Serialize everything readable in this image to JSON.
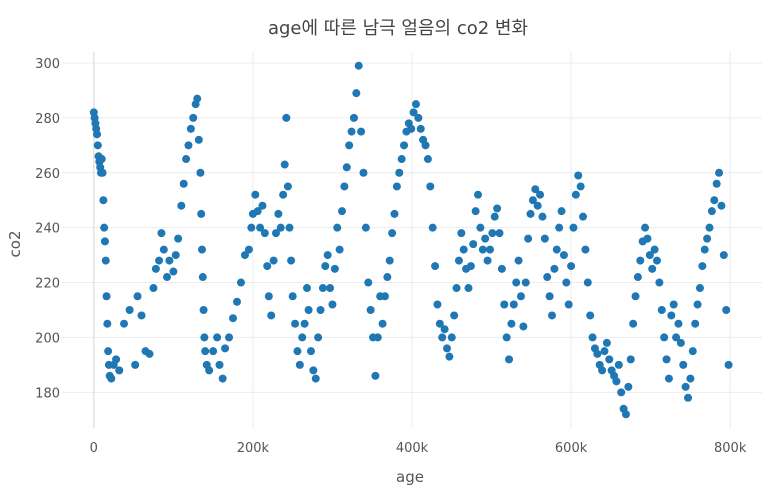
{
  "chart_data": {
    "type": "scatter",
    "title": "age에 따른 남극 얼음의 co2 변화",
    "xlabel": "age",
    "ylabel": "co2",
    "xlim": [
      -40000,
      840000
    ],
    "ylim": [
      167,
      304
    ],
    "xticks": [
      0,
      200000,
      400000,
      600000,
      800000
    ],
    "xtick_labels": [
      "0",
      "200k",
      "400k",
      "600k",
      "800k"
    ],
    "yticks": [
      180,
      200,
      220,
      240,
      260,
      280,
      300
    ],
    "ytick_labels": [
      "180",
      "200",
      "220",
      "240",
      "260",
      "280",
      "300"
    ],
    "grid": true,
    "legend": "none",
    "color": "#1f77b4",
    "points": [
      [
        0,
        282
      ],
      [
        1000,
        280
      ],
      [
        2000,
        278
      ],
      [
        3000,
        276
      ],
      [
        4000,
        274
      ],
      [
        5000,
        270
      ],
      [
        6000,
        266
      ],
      [
        7000,
        264
      ],
      [
        8000,
        262
      ],
      [
        9000,
        260
      ],
      [
        10000,
        265
      ],
      [
        11000,
        260
      ],
      [
        12000,
        250
      ],
      [
        13000,
        240
      ],
      [
        14000,
        235
      ],
      [
        15000,
        228
      ],
      [
        16000,
        215
      ],
      [
        17000,
        205
      ],
      [
        18000,
        195
      ],
      [
        19000,
        190
      ],
      [
        20000,
        186
      ],
      [
        22000,
        185
      ],
      [
        25000,
        190
      ],
      [
        28000,
        192
      ],
      [
        32000,
        188
      ],
      [
        38000,
        205
      ],
      [
        45000,
        210
      ],
      [
        52000,
        190
      ],
      [
        55000,
        215
      ],
      [
        60000,
        208
      ],
      [
        65000,
        195
      ],
      [
        70000,
        194
      ],
      [
        75000,
        218
      ],
      [
        78000,
        225
      ],
      [
        82000,
        228
      ],
      [
        85000,
        238
      ],
      [
        88000,
        232
      ],
      [
        92000,
        222
      ],
      [
        95000,
        228
      ],
      [
        100000,
        224
      ],
      [
        103000,
        230
      ],
      [
        106000,
        236
      ],
      [
        110000,
        248
      ],
      [
        113000,
        256
      ],
      [
        116000,
        265
      ],
      [
        119000,
        270
      ],
      [
        122000,
        276
      ],
      [
        125000,
        280
      ],
      [
        128000,
        285
      ],
      [
        130000,
        287
      ],
      [
        132000,
        272
      ],
      [
        134000,
        260
      ],
      [
        135000,
        245
      ],
      [
        136000,
        232
      ],
      [
        137000,
        222
      ],
      [
        138000,
        210
      ],
      [
        139000,
        200
      ],
      [
        140000,
        195
      ],
      [
        142000,
        190
      ],
      [
        145000,
        188
      ],
      [
        150000,
        195
      ],
      [
        155000,
        200
      ],
      [
        158000,
        190
      ],
      [
        162000,
        185
      ],
      [
        165000,
        196
      ],
      [
        170000,
        200
      ],
      [
        175000,
        207
      ],
      [
        180000,
        213
      ],
      [
        185000,
        220
      ],
      [
        190000,
        230
      ],
      [
        195000,
        232
      ],
      [
        198000,
        240
      ],
      [
        200000,
        245
      ],
      [
        203000,
        252
      ],
      [
        206000,
        246
      ],
      [
        209000,
        240
      ],
      [
        212000,
        248
      ],
      [
        215000,
        238
      ],
      [
        218000,
        226
      ],
      [
        220000,
        215
      ],
      [
        223000,
        208
      ],
      [
        226000,
        228
      ],
      [
        229000,
        238
      ],
      [
        232000,
        245
      ],
      [
        235000,
        240
      ],
      [
        238000,
        252
      ],
      [
        240000,
        263
      ],
      [
        242000,
        280
      ],
      [
        244000,
        255
      ],
      [
        246000,
        240
      ],
      [
        248000,
        228
      ],
      [
        250000,
        215
      ],
      [
        253000,
        205
      ],
      [
        256000,
        195
      ],
      [
        259000,
        190
      ],
      [
        262000,
        200
      ],
      [
        265000,
        205
      ],
      [
        268000,
        218
      ],
      [
        270000,
        210
      ],
      [
        273000,
        195
      ],
      [
        276000,
        188
      ],
      [
        279000,
        185
      ],
      [
        282000,
        200
      ],
      [
        285000,
        210
      ],
      [
        288000,
        218
      ],
      [
        291000,
        226
      ],
      [
        294000,
        230
      ],
      [
        297000,
        218
      ],
      [
        300000,
        212
      ],
      [
        303000,
        225
      ],
      [
        306000,
        240
      ],
      [
        309000,
        232
      ],
      [
        312000,
        246
      ],
      [
        315000,
        255
      ],
      [
        318000,
        262
      ],
      [
        321000,
        270
      ],
      [
        324000,
        275
      ],
      [
        327000,
        280
      ],
      [
        330000,
        289
      ],
      [
        333000,
        299
      ],
      [
        336000,
        275
      ],
      [
        339000,
        260
      ],
      [
        342000,
        240
      ],
      [
        345000,
        220
      ],
      [
        348000,
        210
      ],
      [
        351000,
        200
      ],
      [
        354000,
        186
      ],
      [
        357000,
        200
      ],
      [
        360000,
        215
      ],
      [
        363000,
        205
      ],
      [
        366000,
        215
      ],
      [
        369000,
        222
      ],
      [
        372000,
        228
      ],
      [
        375000,
        238
      ],
      [
        378000,
        245
      ],
      [
        381000,
        255
      ],
      [
        384000,
        260
      ],
      [
        387000,
        265
      ],
      [
        390000,
        270
      ],
      [
        393000,
        275
      ],
      [
        396000,
        278
      ],
      [
        399000,
        276
      ],
      [
        402000,
        282
      ],
      [
        405000,
        285
      ],
      [
        408000,
        280
      ],
      [
        411000,
        276
      ],
      [
        414000,
        272
      ],
      [
        417000,
        270
      ],
      [
        420000,
        265
      ],
      [
        423000,
        255
      ],
      [
        426000,
        240
      ],
      [
        429000,
        226
      ],
      [
        432000,
        212
      ],
      [
        435000,
        205
      ],
      [
        438000,
        200
      ],
      [
        441000,
        203
      ],
      [
        444000,
        196
      ],
      [
        447000,
        193
      ],
      [
        450000,
        200
      ],
      [
        453000,
        208
      ],
      [
        456000,
        218
      ],
      [
        459000,
        228
      ],
      [
        462000,
        238
      ],
      [
        465000,
        232
      ],
      [
        468000,
        225
      ],
      [
        471000,
        218
      ],
      [
        474000,
        226
      ],
      [
        477000,
        234
      ],
      [
        480000,
        246
      ],
      [
        483000,
        252
      ],
      [
        486000,
        240
      ],
      [
        489000,
        232
      ],
      [
        492000,
        236
      ],
      [
        495000,
        228
      ],
      [
        498000,
        232
      ],
      [
        501000,
        238
      ],
      [
        504000,
        244
      ],
      [
        507000,
        247
      ],
      [
        510000,
        238
      ],
      [
        513000,
        225
      ],
      [
        516000,
        212
      ],
      [
        519000,
        200
      ],
      [
        522000,
        192
      ],
      [
        525000,
        205
      ],
      [
        528000,
        212
      ],
      [
        531000,
        220
      ],
      [
        534000,
        228
      ],
      [
        537000,
        215
      ],
      [
        540000,
        204
      ],
      [
        543000,
        220
      ],
      [
        546000,
        236
      ],
      [
        549000,
        245
      ],
      [
        552000,
        250
      ],
      [
        555000,
        254
      ],
      [
        558000,
        248
      ],
      [
        561000,
        252
      ],
      [
        564000,
        244
      ],
      [
        567000,
        236
      ],
      [
        570000,
        222
      ],
      [
        573000,
        215
      ],
      [
        576000,
        208
      ],
      [
        579000,
        225
      ],
      [
        582000,
        232
      ],
      [
        585000,
        240
      ],
      [
        588000,
        246
      ],
      [
        591000,
        230
      ],
      [
        594000,
        220
      ],
      [
        597000,
        212
      ],
      [
        600000,
        226
      ],
      [
        603000,
        240
      ],
      [
        606000,
        252
      ],
      [
        609000,
        259
      ],
      [
        612000,
        255
      ],
      [
        615000,
        244
      ],
      [
        618000,
        232
      ],
      [
        621000,
        220
      ],
      [
        624000,
        208
      ],
      [
        627000,
        200
      ],
      [
        630000,
        196
      ],
      [
        633000,
        194
      ],
      [
        636000,
        190
      ],
      [
        639000,
        188
      ],
      [
        642000,
        195
      ],
      [
        645000,
        198
      ],
      [
        648000,
        192
      ],
      [
        651000,
        188
      ],
      [
        654000,
        186
      ],
      [
        657000,
        184
      ],
      [
        660000,
        190
      ],
      [
        663000,
        180
      ],
      [
        666000,
        174
      ],
      [
        669000,
        172
      ],
      [
        672000,
        182
      ],
      [
        675000,
        192
      ],
      [
        678000,
        205
      ],
      [
        681000,
        215
      ],
      [
        684000,
        222
      ],
      [
        687000,
        228
      ],
      [
        690000,
        235
      ],
      [
        693000,
        240
      ],
      [
        696000,
        236
      ],
      [
        699000,
        230
      ],
      [
        702000,
        225
      ],
      [
        705000,
        232
      ],
      [
        708000,
        228
      ],
      [
        711000,
        220
      ],
      [
        714000,
        210
      ],
      [
        717000,
        200
      ],
      [
        720000,
        192
      ],
      [
        723000,
        185
      ],
      [
        726000,
        208
      ],
      [
        729000,
        212
      ],
      [
        732000,
        200
      ],
      [
        735000,
        205
      ],
      [
        738000,
        198
      ],
      [
        741000,
        190
      ],
      [
        744000,
        182
      ],
      [
        747000,
        178
      ],
      [
        750000,
        185
      ],
      [
        753000,
        195
      ],
      [
        756000,
        205
      ],
      [
        759000,
        212
      ],
      [
        762000,
        218
      ],
      [
        765000,
        226
      ],
      [
        768000,
        232
      ],
      [
        771000,
        236
      ],
      [
        774000,
        240
      ],
      [
        777000,
        246
      ],
      [
        780000,
        250
      ],
      [
        783000,
        256
      ],
      [
        786000,
        260
      ],
      [
        789000,
        248
      ],
      [
        792000,
        230
      ],
      [
        795000,
        210
      ],
      [
        798000,
        190
      ]
    ]
  }
}
